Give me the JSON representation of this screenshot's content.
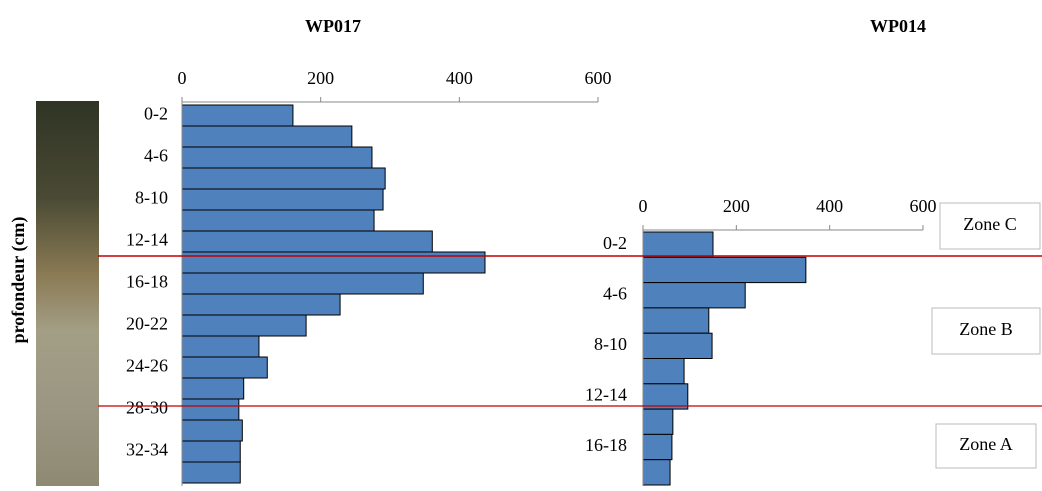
{
  "chart_data": [
    {
      "type": "barh",
      "title": "WP017",
      "ylabel": "profondeur (cm)",
      "color": "#4f81bd",
      "categories": [
        "0-2",
        null,
        "4-6",
        null,
        "8-10",
        null,
        "12-14",
        null,
        "16-18",
        null,
        "20-22",
        null,
        "24-26",
        null,
        "28-30",
        null,
        "32-34",
        null
      ],
      "values": [
        160,
        245,
        274,
        293,
        290,
        277,
        361,
        437,
        348,
        228,
        179,
        111,
        123,
        89,
        82,
        87,
        84,
        84
      ],
      "xlim": [
        0,
        600
      ],
      "xticks": [
        0,
        200,
        400,
        600
      ]
    },
    {
      "type": "barh",
      "title": "WP014",
      "color": "#4f81bd",
      "categories": [
        "0-2",
        null,
        "4-6",
        null,
        "8-10",
        null,
        "12-14",
        null,
        "16-18",
        null
      ],
      "values": [
        150,
        349,
        219,
        141,
        148,
        88,
        96,
        64,
        62,
        58
      ],
      "xlim": [
        0,
        600
      ],
      "xticks": [
        0,
        200,
        400,
        600
      ],
      "annotations": [
        "Zone C",
        "Zone B",
        "Zone A"
      ]
    }
  ]
}
